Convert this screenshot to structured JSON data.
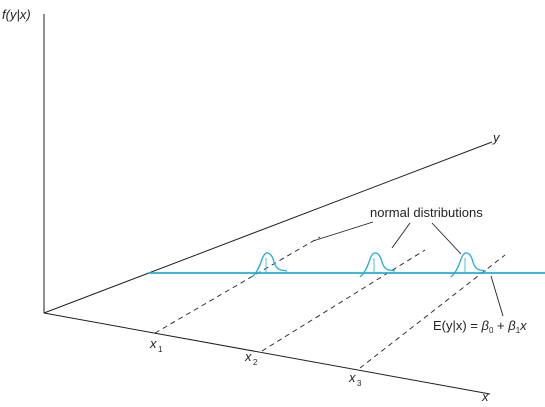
{
  "figure": {
    "colors": {
      "axis": "#231f20",
      "regression_line": "#29abd4",
      "distribution_curve": "#29abd4"
    },
    "labels": {
      "y_axis_vertical": "f(y|x)",
      "y_axis_depth": "y",
      "x_axis": "x",
      "x1_base": "x",
      "x1_sub": "1",
      "x2_base": "x",
      "x2_sub": "2",
      "x3_base": "x",
      "x3_sub": "3",
      "normal_distributions": "normal distributions",
      "eq_lhs": "E(y|x) = ",
      "eq_b0": "β",
      "eq_b0_sub": "0",
      "eq_plus": " + ",
      "eq_b1": "β",
      "eq_b1_sub": "1",
      "eq_x": "x"
    }
  }
}
